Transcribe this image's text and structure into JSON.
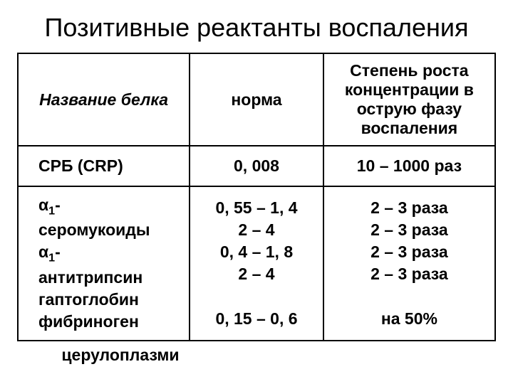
{
  "title": "Позитивные реактанты воспаления",
  "headers": {
    "name": "Название белка",
    "norm": "норма",
    "degree": "Степень роста концентрации в острую фазу воспаления"
  },
  "crp": {
    "name": "СРБ (CRP)",
    "norm": "0, 008",
    "degree": "10 – 1000 раз"
  },
  "multi": {
    "names": {
      "l1a": "α",
      "l1b": "1",
      "l1c": "-",
      "l2": "серомукоиды",
      "l3a": "α",
      "l3b": "1",
      "l3c": "-",
      "l4": "антитрипсин",
      "l5": "гаптоглобин",
      "l6": "фибриноген"
    },
    "norms": {
      "l1": "0, 55 – 1, 4",
      "l2": "2 – 4",
      "l3": "0, 4 – 1, 8",
      "l4": "2 – 4",
      "l5": " ",
      "l6": "0, 15 – 0, 6"
    },
    "degrees": {
      "l1": "2 – 3 раза",
      "l2": "2 – 3 раза",
      "l3": "2 – 3 раза",
      "l4": "2 – 3 раза",
      "l5": " ",
      "l6": "на 50%"
    }
  },
  "cerulo": "церулоплазми"
}
